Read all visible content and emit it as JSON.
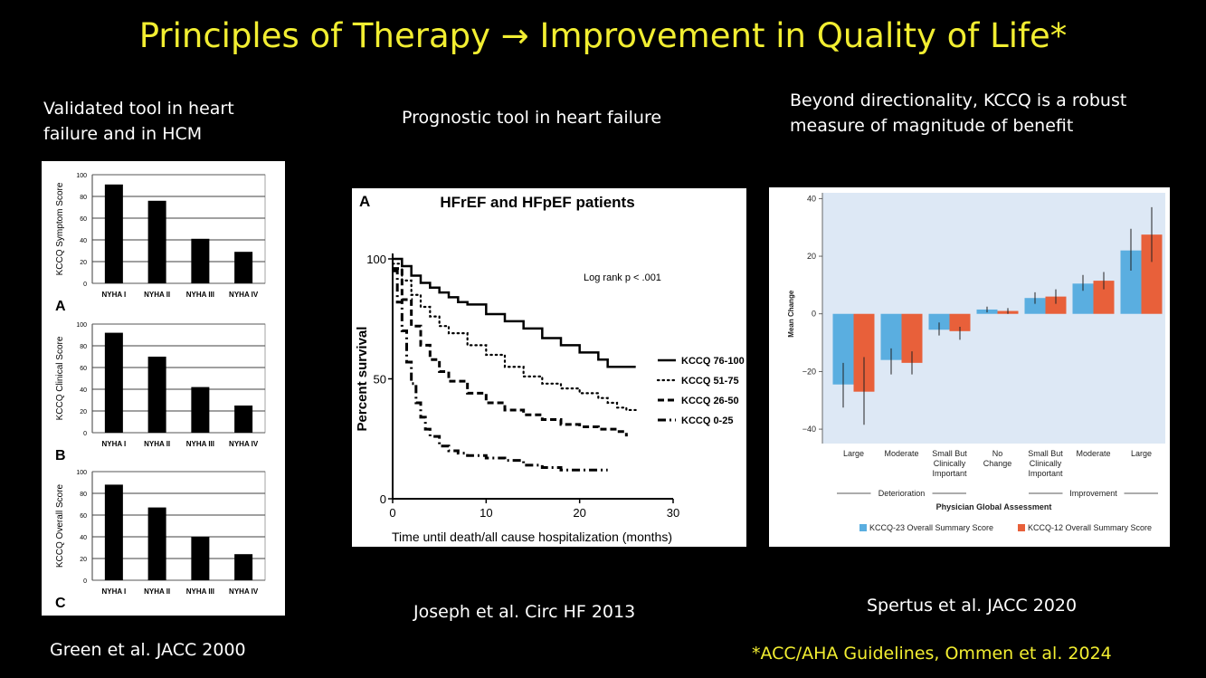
{
  "slide": {
    "title": "Principles of Therapy → Improvement in Quality of Life*",
    "caption_left": "Validated tool in heart failure and in HCM",
    "caption_left_line1": "Validated tool in heart",
    "caption_left_line2": "failure and in HCM",
    "caption_mid": "Prognostic tool in heart failure",
    "caption_right_line1": "Beyond directionality, KCCQ is a robust",
    "caption_right_line2": "measure of magnitude of benefit",
    "ref_left": "Green et al. JACC 2000",
    "ref_mid": "Joseph et al. Circ HF 2013",
    "ref_right": "Spertus et al. JACC 2020",
    "footnote": "*ACC/AHA Guidelines, Ommen et al. 2024",
    "title_color": "#f2ee31"
  },
  "chart_data": [
    {
      "id": "A",
      "type": "bar",
      "panel_label": "A",
      "categories": [
        "NYHA I",
        "NYHA II",
        "NYHA III",
        "NYHA IV"
      ],
      "values": [
        91,
        76,
        41,
        29
      ],
      "ylabel": "KCCQ Symptom Score",
      "ylim": [
        0,
        100
      ],
      "yticks": [
        "0",
        "20",
        "40",
        "60",
        "80",
        "100"
      ],
      "grid": true,
      "bar_color": "#000000"
    },
    {
      "id": "B",
      "type": "bar",
      "panel_label": "B",
      "categories": [
        "NYHA I",
        "NYHA II",
        "NYHA III",
        "NYHA IV"
      ],
      "values": [
        92,
        70,
        42,
        25
      ],
      "ylabel": "KCCQ Clinical  Score",
      "ylim": [
        0,
        100
      ],
      "yticks": [
        "0",
        "20",
        "40",
        "60",
        "80",
        "100"
      ],
      "grid": true,
      "bar_color": "#000000"
    },
    {
      "id": "C",
      "type": "bar",
      "panel_label": "C",
      "categories": [
        "NYHA I",
        "NYHA II",
        "NYHA III",
        "NYHA IV"
      ],
      "values": [
        88,
        67,
        40,
        24
      ],
      "ylabel": "KCCQ Overall Score",
      "ylim": [
        0,
        100
      ],
      "yticks": [
        "0",
        "20",
        "40",
        "60",
        "80",
        "100"
      ],
      "grid": true,
      "bar_color": "#000000"
    },
    {
      "id": "survival",
      "type": "line",
      "panel_label": "A",
      "title": "HFrEF and HFpEF patients",
      "xlabel": "Time until death/all cause hospitalization (months)",
      "ylabel": "Percent survival",
      "xlim": [
        0,
        30
      ],
      "ylim": [
        0,
        100
      ],
      "xticks": [
        "0",
        "10",
        "20",
        "30"
      ],
      "yticks": [
        "0",
        "50",
        "100"
      ],
      "annotation": "Log rank p < .001",
      "series": [
        {
          "name": "KCCQ 76-100",
          "style": "solid",
          "x": [
            0,
            1,
            2,
            3,
            4,
            5,
            6,
            7,
            8,
            10,
            12,
            14,
            16,
            18,
            20,
            22,
            23,
            26
          ],
          "y": [
            100,
            97,
            93,
            90,
            88,
            86,
            84,
            82,
            81,
            77,
            74,
            71,
            67,
            64,
            61,
            58,
            55,
            55
          ]
        },
        {
          "name": "KCCQ 51-75",
          "style": "dotted",
          "x": [
            0,
            1,
            2,
            3,
            4,
            5,
            6,
            8,
            10,
            12,
            14,
            16,
            18,
            20,
            22,
            23,
            24,
            25,
            26
          ],
          "y": [
            98,
            91,
            85,
            80,
            76,
            72,
            69,
            64,
            60,
            55,
            51,
            48,
            46,
            44,
            42,
            40,
            38,
            37,
            37
          ]
        },
        {
          "name": "KCCQ 26-50",
          "style": "dashed",
          "x": [
            0,
            1,
            2,
            3,
            4,
            5,
            6,
            8,
            10,
            12,
            14,
            16,
            18,
            20,
            22,
            24,
            25
          ],
          "y": [
            96,
            83,
            72,
            64,
            58,
            53,
            49,
            44,
            40,
            37,
            35,
            33,
            31,
            30,
            29,
            28,
            26
          ]
        },
        {
          "name": "KCCQ 0-25",
          "style": "dashdot",
          "x": [
            0,
            0.5,
            1,
            1.5,
            2,
            2.5,
            3,
            3.5,
            4,
            5,
            6,
            7,
            8,
            10,
            12,
            14,
            16,
            18,
            20,
            22,
            23
          ],
          "y": [
            95,
            82,
            70,
            57,
            48,
            40,
            34,
            29,
            26,
            22,
            20,
            19,
            18,
            17,
            16,
            14,
            13,
            12,
            12,
            12,
            12
          ]
        }
      ]
    },
    {
      "id": "pga",
      "type": "bar",
      "categories": [
        "Large",
        "Moderate",
        "Small But Clinically Important",
        "No Change",
        "Small But Clinically Important",
        "Moderate",
        "Large"
      ],
      "category_lines": [
        [
          "Large"
        ],
        [
          "Moderate"
        ],
        [
          "Small But",
          "Clinically",
          "Important"
        ],
        [
          "No",
          "Change"
        ],
        [
          "Small But",
          "Clinically",
          "Important"
        ],
        [
          "Moderate"
        ],
        [
          "Large"
        ]
      ],
      "groups": [
        {
          "label": "Deterioration",
          "from": 0,
          "to": 2
        },
        {
          "label": "Improvement",
          "from": 4,
          "to": 6
        }
      ],
      "xlabel": "Physician Global Assessment",
      "ylabel": "Mean Change",
      "ylim": [
        -45,
        42
      ],
      "yticks": [
        "40",
        "20",
        "0",
        "−20",
        "−40"
      ],
      "ytick_values": [
        40,
        20,
        0,
        -20,
        -40
      ],
      "series": [
        {
          "name": "KCCQ-23 Overall Summary Score",
          "color": "#5aaee0",
          "values": [
            -24.5,
            -16.0,
            -5.5,
            1.5,
            5.5,
            10.5,
            22.0
          ],
          "ci_low": [
            -32.5,
            -21.0,
            -7.5,
            0.5,
            3.5,
            8.0,
            15.0
          ],
          "ci_high": [
            -17.0,
            -12.0,
            -3.0,
            2.5,
            7.5,
            13.5,
            29.5
          ]
        },
        {
          "name": "KCCQ-12 Overall Summary Score",
          "color": "#e8603a",
          "values": [
            -27.0,
            -17.0,
            -6.0,
            1.0,
            6.0,
            11.5,
            27.5
          ],
          "ci_low": [
            -38.5,
            -21.0,
            -9.0,
            0.0,
            3.5,
            8.5,
            18.0
          ],
          "ci_high": [
            -15.0,
            -13.0,
            -4.5,
            2.0,
            8.5,
            14.5,
            37.0
          ]
        }
      ],
      "background_color": "#dde8f5"
    }
  ]
}
